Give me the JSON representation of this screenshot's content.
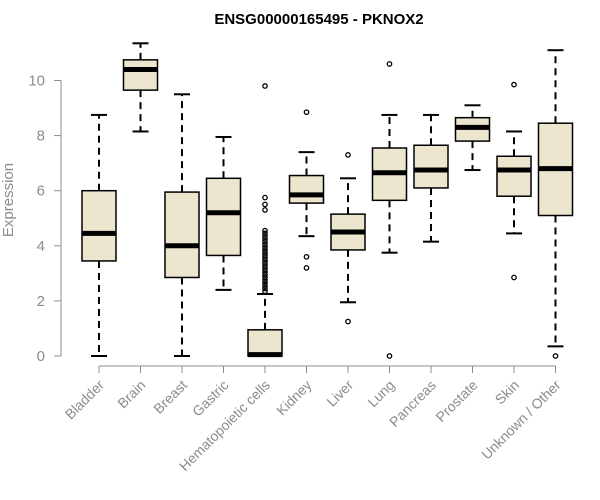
{
  "chart_data": {
    "type": "boxplot",
    "title": "ENSG00000165495 - PKNOX2",
    "xlabel": "",
    "ylabel": "Expression",
    "ylim": [
      0,
      11.2
    ],
    "yticks": [
      0,
      2,
      4,
      6,
      8,
      10
    ],
    "box_color": "#ede6cf",
    "categories": [
      "Bladder",
      "Brain",
      "Breast",
      "Gastric",
      "Hematopoietic cells",
      "Kidney",
      "Liver",
      "Lung",
      "Pancreas",
      "Prostate",
      "Skin",
      "Unknown / Other"
    ],
    "boxes": [
      {
        "min": 0.0,
        "q1": 3.45,
        "median": 4.45,
        "q3": 6.0,
        "max": 8.75,
        "outliers": []
      },
      {
        "min": 8.15,
        "q1": 9.65,
        "median": 10.4,
        "q3": 10.75,
        "max": 11.35,
        "outliers": []
      },
      {
        "min": 0.0,
        "q1": 2.85,
        "median": 4.0,
        "q3": 5.95,
        "max": 9.5,
        "outliers": []
      },
      {
        "min": 2.4,
        "q1": 3.65,
        "median": 5.2,
        "q3": 6.45,
        "max": 7.95,
        "outliers": []
      },
      {
        "min": 0.0,
        "q1": 0.0,
        "median": 0.05,
        "q3": 0.95,
        "max": 2.25,
        "outliers": [
          2.35,
          2.45,
          2.55,
          2.65,
          2.75,
          2.85,
          2.95,
          3.05,
          3.15,
          3.25,
          3.35,
          3.45,
          3.55,
          3.65,
          3.75,
          3.85,
          3.95,
          4.05,
          4.15,
          4.25,
          4.35,
          4.45,
          4.55,
          5.3,
          5.5,
          5.75,
          9.8
        ]
      },
      {
        "min": 4.35,
        "q1": 5.55,
        "median": 5.85,
        "q3": 6.55,
        "max": 7.4,
        "outliers": [
          3.2,
          3.6,
          8.85
        ]
      },
      {
        "min": 1.95,
        "q1": 3.85,
        "median": 4.5,
        "q3": 5.15,
        "max": 6.45,
        "outliers": [
          1.25,
          7.3
        ]
      },
      {
        "min": 3.75,
        "q1": 5.65,
        "median": 6.65,
        "q3": 7.55,
        "max": 8.75,
        "outliers": [
          0.0,
          10.6
        ]
      },
      {
        "min": 4.15,
        "q1": 6.1,
        "median": 6.75,
        "q3": 7.65,
        "max": 8.75,
        "outliers": []
      },
      {
        "min": 6.75,
        "q1": 7.8,
        "median": 8.3,
        "q3": 8.65,
        "max": 9.1,
        "outliers": []
      },
      {
        "min": 4.45,
        "q1": 5.8,
        "median": 6.75,
        "q3": 7.25,
        "max": 8.15,
        "outliers": [
          2.85,
          9.85
        ]
      },
      {
        "min": 0.35,
        "q1": 5.1,
        "median": 6.8,
        "q3": 8.45,
        "max": 11.1,
        "outliers": [
          0.0
        ]
      }
    ]
  }
}
